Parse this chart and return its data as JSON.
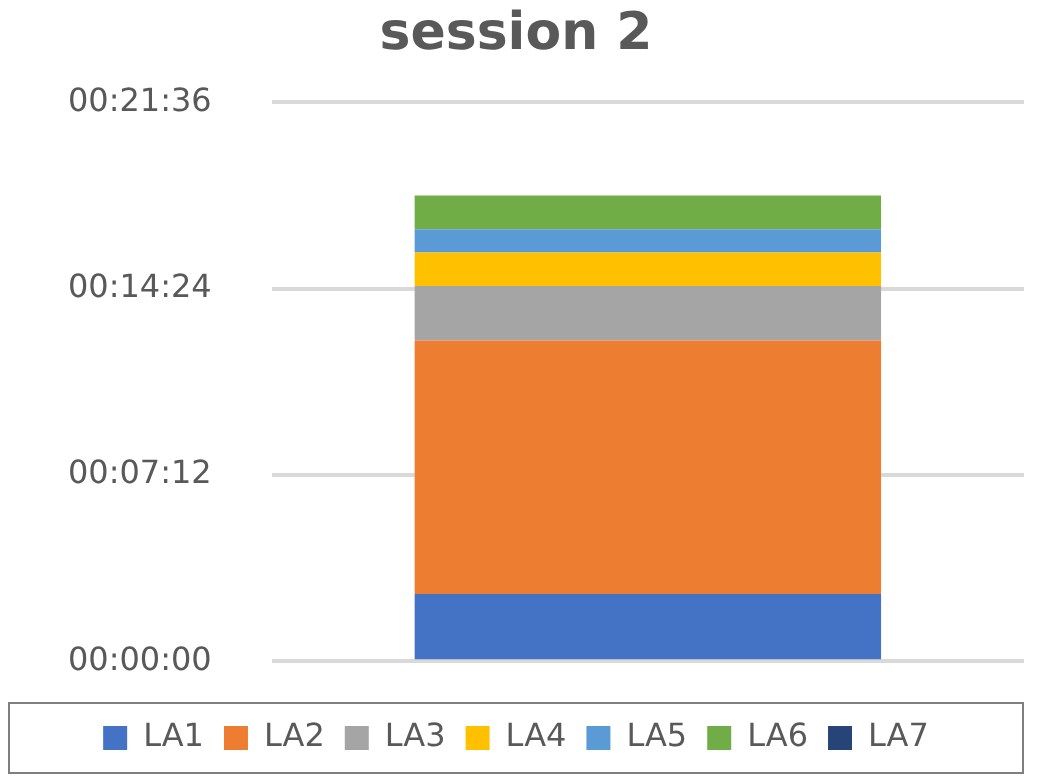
{
  "chart_data": {
    "type": "bar",
    "title": "session 2",
    "categories": [
      null
    ],
    "stacked": true,
    "series": [
      {
        "name": "LA1",
        "color": "#4472c4",
        "values": [
          2.6
        ]
      },
      {
        "name": "LA2",
        "color": "#ed7d31",
        "values": [
          9.8
        ]
      },
      {
        "name": "LA3",
        "color": "#a5a5a5",
        "values": [
          2.1
        ]
      },
      {
        "name": "LA4",
        "color": "#ffc000",
        "values": [
          1.3
        ]
      },
      {
        "name": "LA5",
        "color": "#5b9bd5",
        "values": [
          0.9
        ]
      },
      {
        "name": "LA6",
        "color": "#70ad47",
        "values": [
          1.3
        ]
      },
      {
        "name": "LA7",
        "color": "#264478",
        "values": [
          0
        ]
      }
    ],
    "ylim": [
      0,
      21.6
    ],
    "yticks": [
      {
        "value": 0,
        "label": "00:00:00"
      },
      {
        "value": 7.2,
        "label": "00:07:12"
      },
      {
        "value": 14.4,
        "label": "00:14:24"
      },
      {
        "value": 21.6,
        "label": "00:21:36"
      }
    ],
    "grid": "y",
    "legend": "bottom"
  }
}
